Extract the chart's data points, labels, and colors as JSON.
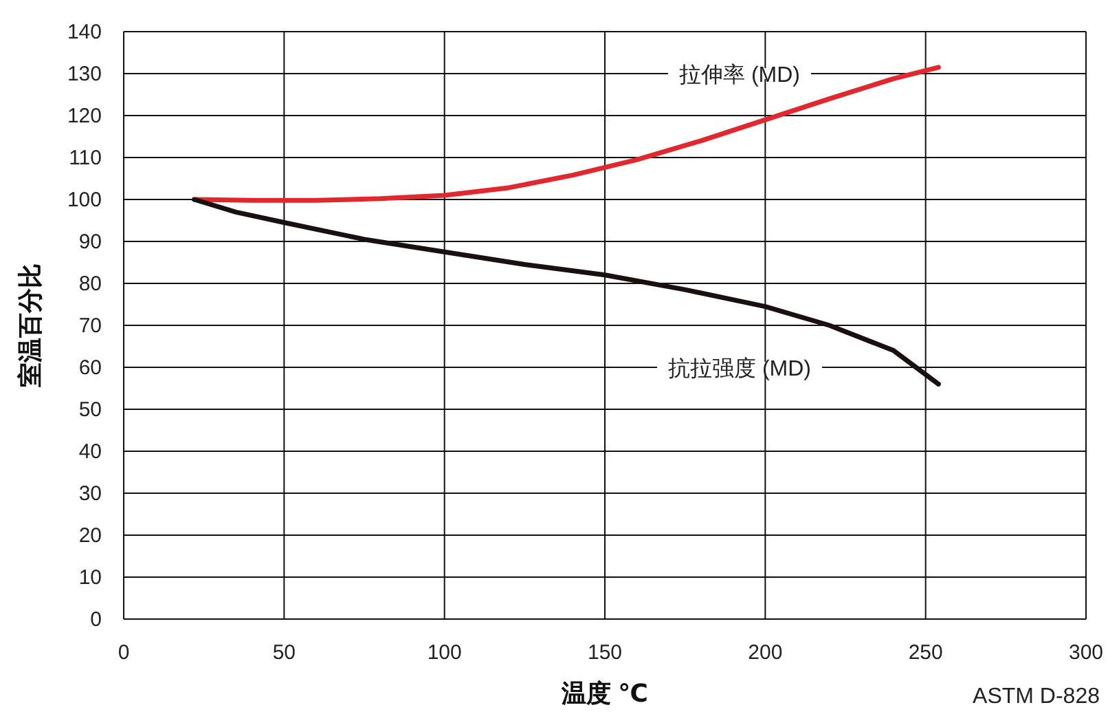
{
  "chart_data": {
    "type": "line",
    "xlabel": "温度 ℃",
    "ylabel": "室温百分比",
    "xlim": [
      0,
      300
    ],
    "xticks": [
      0,
      50,
      100,
      150,
      200,
      250,
      300
    ],
    "ylim": [
      0,
      140
    ],
    "yticks": [
      0,
      10,
      20,
      30,
      40,
      50,
      60,
      70,
      80,
      90,
      100,
      110,
      120,
      130,
      140
    ],
    "grid": true,
    "legend": false,
    "marker": "none",
    "line_style": "solid",
    "series": [
      {
        "name": "拉伸率 (MD)",
        "color": "#e0282e",
        "x": [
          22,
          40,
          60,
          80,
          100,
          120,
          140,
          160,
          180,
          200,
          220,
          240,
          254
        ],
        "values": [
          100,
          99.8,
          99.8,
          100.2,
          101,
          102.8,
          105.8,
          109.5,
          114,
          119,
          124,
          128.8,
          131.5
        ]
      },
      {
        "name": "抗拉强度 (MD)",
        "color": "#1a1010",
        "x": [
          22,
          35,
          50,
          75,
          100,
          125,
          150,
          175,
          200,
          220,
          240,
          254
        ],
        "values": [
          100,
          97,
          94.5,
          90.5,
          87.5,
          84.5,
          82,
          78.5,
          74.5,
          70,
          64,
          56
        ]
      }
    ],
    "annotations": [
      "ASTM D-828"
    ]
  }
}
